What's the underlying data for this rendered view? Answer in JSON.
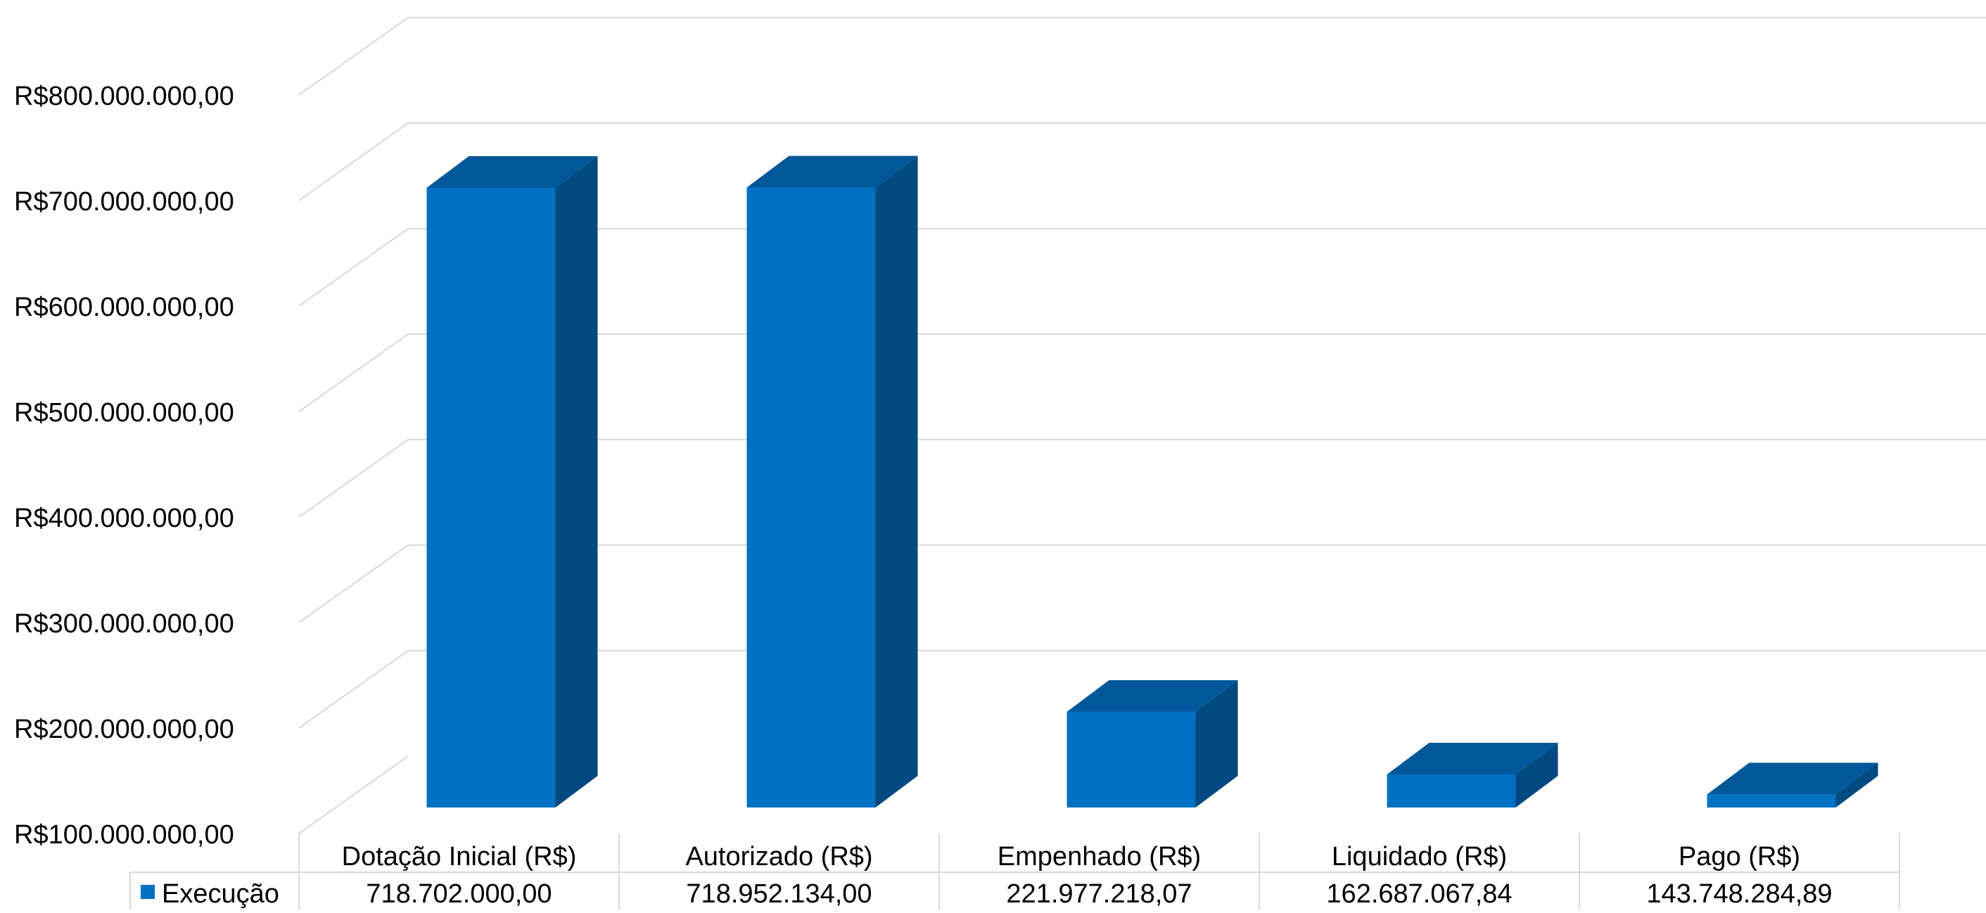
{
  "chart_data": {
    "type": "bar",
    "style": "3d-column-with-data-table",
    "title": "",
    "xlabel": "",
    "ylabel": "",
    "categories": [
      "Dotação Inicial (R$)",
      "Autorizado (R$)",
      "Empenhado (R$)",
      "Liquidado (R$)",
      "Pago (R$)"
    ],
    "series": [
      {
        "name": "Execução",
        "values": [
          718702000.0,
          718952134.0,
          221977218.07,
          162687067.84,
          143748284.89
        ],
        "value_labels": [
          "718.702.000,00",
          "718.952.134,00",
          "221.977.218,07",
          "162.687.067,84",
          "143.748.284,89"
        ]
      }
    ],
    "ylim": [
      100000000,
      800000000
    ],
    "y_ticks": [
      100000000,
      200000000,
      300000000,
      400000000,
      500000000,
      600000000,
      700000000,
      800000000
    ],
    "y_tick_labels": [
      "R$100.000.000,00",
      "R$200.000.000,00",
      "R$300.000.000,00",
      "R$400.000.000,00",
      "R$500.000.000,00",
      "R$600.000.000,00",
      "R$700.000.000,00",
      "R$800.000.000,00"
    ],
    "grid": true,
    "legend": "data-table",
    "colors": {
      "front": "#0070C0",
      "side": "#004A80",
      "top": "#00589A",
      "grid": "#D9D9D9",
      "table_border": "#D9D9D9"
    }
  }
}
